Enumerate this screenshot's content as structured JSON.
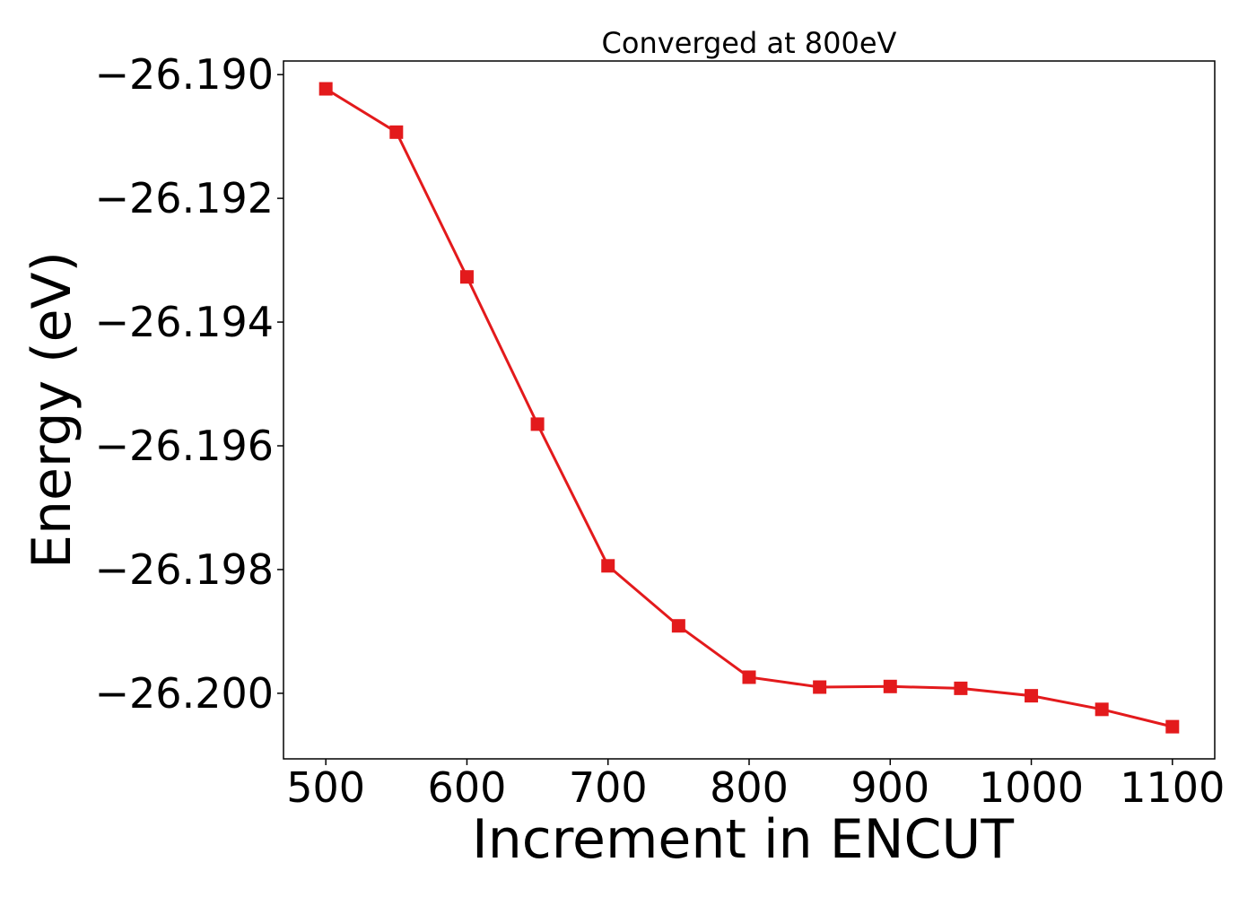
{
  "chart_data": {
    "type": "line",
    "title": "Converged at 800eV",
    "xlabel": "Increment in ENCUT",
    "ylabel": "Energy (eV)",
    "xlim": [
      470,
      1130
    ],
    "ylim": [
      -26.20106,
      -26.18978
    ],
    "x_ticks": [
      500,
      600,
      700,
      800,
      900,
      1000,
      1100
    ],
    "x_tick_labels": [
      "500",
      "600",
      "700",
      "800",
      "900",
      "1000",
      "1100"
    ],
    "y_ticks": [
      -26.19,
      -26.192,
      -26.194,
      -26.196,
      -26.198,
      -26.2
    ],
    "y_tick_labels": [
      "−26.190",
      "−26.192",
      "−26.194",
      "−26.196",
      "−26.198",
      "−26.200"
    ],
    "grid": false,
    "legend": "none",
    "series": [
      {
        "color": "#e31a1c",
        "marker": "square",
        "x": [
          500,
          550,
          600,
          650,
          700,
          750,
          800,
          850,
          900,
          950,
          1000,
          1050,
          1100
        ],
        "y": [
          -26.19023,
          -26.19093,
          -26.19327,
          -26.19565,
          -26.19794,
          -26.19891,
          -26.19974,
          -26.1999,
          -26.19989,
          -26.19992,
          -26.20004,
          -26.20026,
          -26.20054
        ]
      }
    ]
  }
}
